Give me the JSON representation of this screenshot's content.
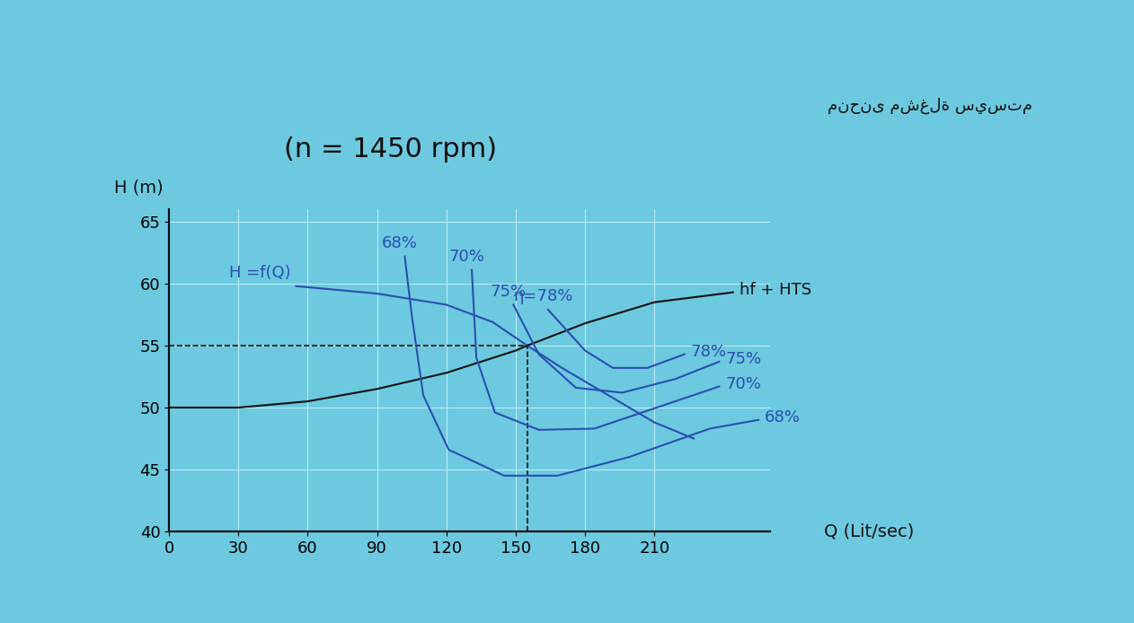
{
  "chart_data": {
    "type": "line",
    "title": "(n = 1450 rpm)",
    "x_label": "Q (Lit/sec)",
    "y_label": "H (m)",
    "annotations": [
      "منحنى مشغلة سيستم"
    ],
    "xlim": [
      0,
      260
    ],
    "xticks": [
      0,
      30,
      60,
      90,
      120,
      150,
      180,
      210
    ],
    "ylim": [
      40,
      66
    ],
    "yticks": [
      40,
      45,
      50,
      55,
      60,
      65
    ],
    "grid": true,
    "operating_point": {
      "x": 155,
      "y": 55
    },
    "series": [
      {
        "start_label": "H =f(Q)",
        "color": "#2a4fb0",
        "line_style": "solid",
        "x": [
          55,
          90,
          120,
          140,
          155,
          170,
          190,
          210,
          227
        ],
        "values": [
          59.8,
          59.2,
          58.3,
          56.9,
          55,
          53.2,
          51,
          48.8,
          47.5
        ]
      },
      {
        "end_label": "hf + HTS",
        "color": "#111111",
        "line_style": "solid",
        "x": [
          0,
          30,
          60,
          90,
          120,
          150,
          155,
          180,
          210,
          244
        ],
        "values": [
          50,
          50,
          50.5,
          51.5,
          52.8,
          54.6,
          55,
          56.8,
          58.5,
          59.3
        ]
      },
      {
        "start_label": "68%",
        "end_label": "68%",
        "color": "#2a4fb0",
        "line_style": "solid",
        "x": [
          102,
          105,
          110,
          121,
          145,
          168,
          199,
          234,
          255
        ],
        "values": [
          62.2,
          57.5,
          51,
          46.6,
          44.5,
          44.5,
          46,
          48.3,
          49
        ]
      },
      {
        "start_label": "70%",
        "end_label": "70%",
        "color": "#2a4fb0",
        "line_style": "solid",
        "x": [
          131,
          133,
          141,
          160,
          184,
          211,
          238
        ],
        "values": [
          61.1,
          54,
          49.6,
          48.2,
          48.3,
          50,
          51.7
        ]
      },
      {
        "start_label": "75%",
        "end_label": "75%",
        "color": "#2a4fb0",
        "line_style": "solid",
        "x": [
          149,
          160,
          176,
          196,
          219,
          238
        ],
        "values": [
          58.3,
          54.3,
          51.6,
          51.2,
          52.3,
          53.7
        ]
      },
      {
        "start_label": "η=78%",
        "end_label": "78%",
        "color": "#2a4fb0",
        "line_style": "solid",
        "x": [
          164,
          180,
          192,
          207,
          223
        ],
        "values": [
          57.9,
          54.6,
          53.2,
          53.2,
          54.3
        ]
      }
    ]
  }
}
